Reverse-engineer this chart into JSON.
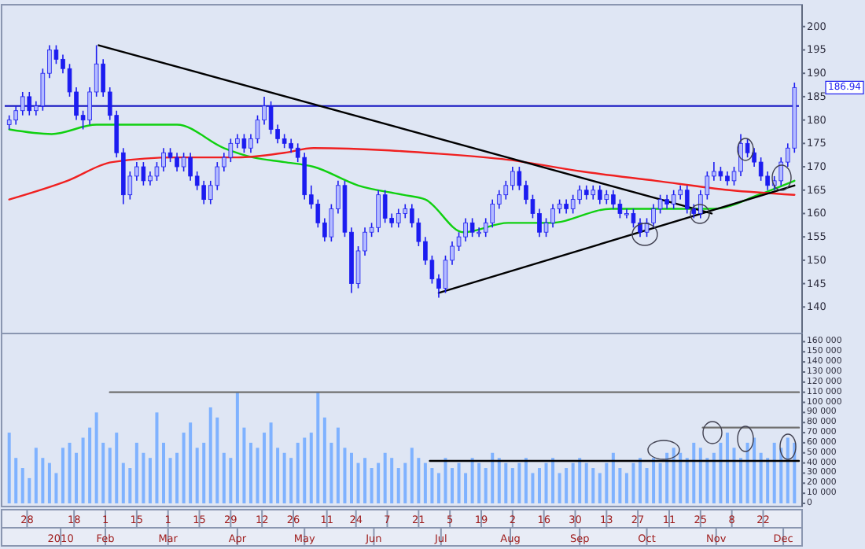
{
  "chart_data": [
    {
      "type": "candlestick",
      "color": "#1c1cf0",
      "xlim": [
        "2009-12-18",
        "2010-12-08"
      ],
      "ylim": [
        135,
        204
      ],
      "yticks": [
        140,
        145,
        150,
        155,
        160,
        165,
        170,
        175,
        180,
        185,
        190,
        195,
        200
      ],
      "tick_labels": "y",
      "x": [
        "2009-12-20",
        "2009-12-23",
        "2009-12-26",
        "2009-12-29",
        "2010-01-01",
        "2010-01-04",
        "2010-01-07",
        "2010-01-10",
        "2010-01-13",
        "2010-01-16",
        "2010-01-19",
        "2010-01-22",
        "2010-01-25",
        "2010-01-28",
        "2010-01-31",
        "2010-02-03",
        "2010-02-06",
        "2010-02-09",
        "2010-02-12",
        "2010-02-15",
        "2010-02-18",
        "2010-02-21",
        "2010-02-24",
        "2010-02-27",
        "2010-03-02",
        "2010-03-05",
        "2010-03-08",
        "2010-03-11",
        "2010-03-14",
        "2010-03-17",
        "2010-03-20",
        "2010-03-23",
        "2010-03-26",
        "2010-03-29",
        "2010-04-01",
        "2010-04-04",
        "2010-04-07",
        "2010-04-10",
        "2010-04-13",
        "2010-04-16",
        "2010-04-19",
        "2010-04-22",
        "2010-04-25",
        "2010-04-28",
        "2010-05-01",
        "2010-05-04",
        "2010-05-07",
        "2010-05-10",
        "2010-05-13",
        "2010-05-16",
        "2010-05-19",
        "2010-05-22",
        "2010-05-25",
        "2010-05-28",
        "2010-05-31",
        "2010-06-03",
        "2010-06-06",
        "2010-06-09",
        "2010-06-12",
        "2010-06-15",
        "2010-06-18",
        "2010-06-21",
        "2010-06-24",
        "2010-06-27",
        "2010-06-30",
        "2010-07-03",
        "2010-07-06",
        "2010-07-09",
        "2010-07-12",
        "2010-07-15",
        "2010-07-18",
        "2010-07-21",
        "2010-07-24",
        "2010-07-27",
        "2010-07-30",
        "2010-08-02",
        "2010-08-05",
        "2010-08-08",
        "2010-08-11",
        "2010-08-14",
        "2010-08-17",
        "2010-08-20",
        "2010-08-23",
        "2010-08-26",
        "2010-08-29",
        "2010-09-01",
        "2010-09-04",
        "2010-09-07",
        "2010-09-10",
        "2010-09-13",
        "2010-09-16",
        "2010-09-19",
        "2010-09-22",
        "2010-09-25",
        "2010-09-28",
        "2010-10-01",
        "2010-10-04",
        "2010-10-07",
        "2010-10-10",
        "2010-10-13",
        "2010-10-16",
        "2010-10-19",
        "2010-10-22",
        "2010-10-25",
        "2010-10-28",
        "2010-10-31",
        "2010-11-03",
        "2010-11-06",
        "2010-11-09",
        "2010-11-12",
        "2010-11-15",
        "2010-11-18",
        "2010-11-21",
        "2010-11-24",
        "2010-11-27",
        "2010-11-30",
        "2010-12-03",
        "2010-12-06"
      ],
      "ohlc": [
        [
          179,
          181,
          178,
          180
        ],
        [
          180,
          183,
          179,
          182
        ],
        [
          182,
          186,
          181,
          185
        ],
        [
          185,
          186,
          181,
          182
        ],
        [
          182,
          184,
          181,
          183
        ],
        [
          183,
          191,
          182,
          190
        ],
        [
          190,
          196,
          189,
          195
        ],
        [
          195,
          196,
          192,
          193
        ],
        [
          193,
          194,
          190,
          191
        ],
        [
          191,
          192,
          185,
          186
        ],
        [
          186,
          187,
          180,
          181
        ],
        [
          181,
          182,
          178,
          180
        ],
        [
          180,
          187,
          179,
          186
        ],
        [
          186,
          196,
          185,
          192
        ],
        [
          192,
          193,
          185,
          186
        ],
        [
          186,
          187,
          180,
          181
        ],
        [
          181,
          182,
          172,
          173
        ],
        [
          173,
          174,
          162,
          164
        ],
        [
          164,
          169,
          163,
          168
        ],
        [
          168,
          171,
          167,
          170
        ],
        [
          170,
          171,
          166,
          167
        ],
        [
          167,
          169,
          166,
          168
        ],
        [
          168,
          171,
          167,
          170
        ],
        [
          170,
          174,
          169,
          173
        ],
        [
          173,
          174,
          171,
          172
        ],
        [
          172,
          173,
          169,
          170
        ],
        [
          170,
          173,
          169,
          172
        ],
        [
          172,
          173,
          167,
          168
        ],
        [
          168,
          169,
          165,
          166
        ],
        [
          166,
          167,
          162,
          163
        ],
        [
          163,
          167,
          162,
          166
        ],
        [
          166,
          171,
          165,
          170
        ],
        [
          170,
          173,
          169,
          172
        ],
        [
          172,
          176,
          171,
          175
        ],
        [
          175,
          177,
          174,
          176
        ],
        [
          176,
          177,
          173,
          174
        ],
        [
          174,
          177,
          173,
          176
        ],
        [
          176,
          181,
          175,
          180
        ],
        [
          180,
          185,
          179,
          183
        ],
        [
          183,
          184,
          177,
          178
        ],
        [
          178,
          179,
          175,
          176
        ],
        [
          176,
          177,
          174,
          175
        ],
        [
          175,
          176,
          173,
          174
        ],
        [
          174,
          175,
          171,
          172
        ],
        [
          172,
          173,
          163,
          164
        ],
        [
          164,
          166,
          161,
          162
        ],
        [
          162,
          163,
          157,
          158
        ],
        [
          158,
          159,
          154,
          155
        ],
        [
          155,
          162,
          154,
          161
        ],
        [
          161,
          167,
          160,
          166
        ],
        [
          166,
          167,
          155,
          156
        ],
        [
          156,
          157,
          143,
          145
        ],
        [
          145,
          153,
          144,
          152
        ],
        [
          152,
          157,
          151,
          156
        ],
        [
          156,
          158,
          155,
          157
        ],
        [
          157,
          165,
          156,
          164
        ],
        [
          164,
          165,
          158,
          159
        ],
        [
          159,
          160,
          157,
          158
        ],
        [
          158,
          161,
          157,
          160
        ],
        [
          160,
          162,
          159,
          161
        ],
        [
          161,
          162,
          157,
          158
        ],
        [
          158,
          159,
          153,
          154
        ],
        [
          154,
          155,
          149,
          150
        ],
        [
          150,
          151,
          145,
          146
        ],
        [
          146,
          147,
          142,
          144
        ],
        [
          144,
          151,
          143,
          150
        ],
        [
          150,
          154,
          149,
          153
        ],
        [
          153,
          156,
          152,
          155
        ],
        [
          155,
          159,
          154,
          158
        ],
        [
          158,
          159,
          155,
          156
        ],
        [
          156,
          157,
          155,
          156
        ],
        [
          156,
          159,
          155,
          158
        ],
        [
          158,
          163,
          157,
          162
        ],
        [
          162,
          165,
          161,
          164
        ],
        [
          164,
          167,
          163,
          166
        ],
        [
          166,
          170,
          165,
          169
        ],
        [
          169,
          170,
          165,
          166
        ],
        [
          166,
          167,
          162,
          163
        ],
        [
          163,
          164,
          159,
          160
        ],
        [
          160,
          161,
          155,
          156
        ],
        [
          156,
          159,
          155,
          158
        ],
        [
          158,
          162,
          157,
          161
        ],
        [
          161,
          163,
          160,
          162
        ],
        [
          162,
          163,
          160,
          161
        ],
        [
          161,
          164,
          160,
          163
        ],
        [
          163,
          166,
          162,
          165
        ],
        [
          165,
          166,
          163,
          164
        ],
        [
          164,
          166,
          163,
          165
        ],
        [
          165,
          166,
          162,
          163
        ],
        [
          163,
          165,
          162,
          164
        ],
        [
          164,
          165,
          161,
          162
        ],
        [
          162,
          163,
          159,
          160
        ],
        [
          160,
          161,
          159,
          160
        ],
        [
          160,
          161,
          157,
          158
        ],
        [
          158,
          159,
          155,
          156
        ],
        [
          156,
          159,
          155,
          158
        ],
        [
          158,
          162,
          157,
          161
        ],
        [
          161,
          164,
          160,
          163
        ],
        [
          163,
          164,
          161,
          162
        ],
        [
          162,
          165,
          161,
          164
        ],
        [
          164,
          166,
          163,
          165
        ],
        [
          165,
          166,
          160,
          161
        ],
        [
          161,
          162,
          159,
          160
        ],
        [
          160,
          165,
          159,
          164
        ],
        [
          164,
          169,
          163,
          168
        ],
        [
          168,
          171,
          167,
          169
        ],
        [
          169,
          170,
          167,
          168
        ],
        [
          168,
          169,
          166,
          167
        ],
        [
          167,
          170,
          166,
          169
        ],
        [
          169,
          177,
          168,
          175
        ],
        [
          175,
          176,
          172,
          173
        ],
        [
          173,
          174,
          170,
          171
        ],
        [
          171,
          172,
          167,
          168
        ],
        [
          168,
          169,
          165,
          166
        ],
        [
          166,
          168,
          165,
          167
        ],
        [
          167,
          172,
          166,
          171
        ],
        [
          171,
          175,
          170,
          174
        ],
        [
          174,
          188,
          173,
          186.94
        ]
      ],
      "series": [
        {
          "type": "line",
          "color": "#10d010",
          "x": [
            "2009-12-20",
            "2010-01-08",
            "2010-01-28",
            "2010-03-05",
            "2010-03-26",
            "2010-04-08",
            "2010-04-22",
            "2010-05-05",
            "2010-05-25",
            "2010-06-14",
            "2010-06-24",
            "2010-07-11",
            "2010-07-31",
            "2010-08-19",
            "2010-09-15",
            "2010-10-11",
            "2010-10-31",
            "2010-11-20",
            "2010-12-06"
          ],
          "values": [
            178,
            177,
            179,
            179,
            174,
            172,
            171,
            170,
            166,
            164,
            163,
            156,
            158,
            158,
            161,
            161,
            161,
            164,
            167
          ]
        },
        {
          "type": "line",
          "color": "#f02020",
          "x": [
            "2009-12-20",
            "2010-01-15",
            "2010-02-04",
            "2010-03-05",
            "2010-04-01",
            "2010-04-22",
            "2010-05-05",
            "2010-06-08",
            "2010-06-24",
            "2010-07-31",
            "2010-09-02",
            "2010-10-05",
            "2010-11-07",
            "2010-12-06"
          ],
          "values": [
            163,
            167,
            171,
            172,
            172,
            173,
            174,
            173.5,
            173,
            171.5,
            169,
            167,
            165,
            164
          ]
        },
        {
          "type": "line",
          "color": "#000000",
          "x": [
            "2010-01-29",
            "2010-10-30"
          ],
          "values": [
            196,
            160
          ]
        },
        {
          "type": "line",
          "color": "#000000",
          "x": [
            "2010-06-30",
            "2010-12-06"
          ],
          "values": [
            143,
            166
          ]
        }
      ],
      "ref_lines": [
        {
          "axis": "y",
          "value": 183,
          "color": "#1010c0"
        }
      ],
      "annotations": [
        "186.94"
      ]
    },
    {
      "type": "bar",
      "xlim": [
        "2009-12-18",
        "2010-12-08"
      ],
      "ylim": [
        0,
        165000
      ],
      "yticks": [
        {
          "value": 0,
          "label": "0"
        },
        {
          "value": 10000,
          "label": "10 000"
        },
        {
          "value": 20000,
          "label": "20 000"
        },
        {
          "value": 30000,
          "label": "30 000"
        },
        {
          "value": 40000,
          "label": "40 000"
        },
        {
          "value": 50000,
          "label": "50 000"
        },
        {
          "value": 60000,
          "label": "60 000"
        },
        {
          "value": 70000,
          "label": "70 000"
        },
        {
          "value": 80000,
          "label": "80 000"
        },
        {
          "value": 90000,
          "label": "90 000"
        },
        {
          "value": 100000,
          "label": "100 000"
        },
        {
          "value": 110000,
          "label": "110 000"
        },
        {
          "value": 120000,
          "label": "120 000"
        },
        {
          "value": 130000,
          "label": "130 000"
        },
        {
          "value": 140000,
          "label": "140 000"
        },
        {
          "value": 150000,
          "label": "150 000"
        },
        {
          "value": 160000,
          "label": "160 000"
        }
      ],
      "xticks": [
        {
          "value": "2009-12-28",
          "label": "28"
        },
        {
          "value": "2010-01-18",
          "label": "18"
        },
        {
          "value": "2010-02-01",
          "label": "1"
        },
        {
          "value": "2010-02-15",
          "label": "15"
        },
        {
          "value": "2010-03-01",
          "label": "1"
        },
        {
          "value": "2010-03-15",
          "label": "15"
        },
        {
          "value": "2010-03-29",
          "label": "29"
        },
        {
          "value": "2010-04-12",
          "label": "12"
        },
        {
          "value": "2010-04-26",
          "label": "26"
        },
        {
          "value": "2010-05-11",
          "label": "11"
        },
        {
          "value": "2010-05-24",
          "label": "24"
        },
        {
          "value": "2010-06-07",
          "label": "7"
        },
        {
          "value": "2010-06-21",
          "label": "21"
        },
        {
          "value": "2010-07-05",
          "label": "5"
        },
        {
          "value": "2010-07-19",
          "label": "19"
        },
        {
          "value": "2010-08-02",
          "label": "2"
        },
        {
          "value": "2010-08-16",
          "label": "16"
        },
        {
          "value": "2010-08-30",
          "label": "30"
        },
        {
          "value": "2010-09-13",
          "label": "13"
        },
        {
          "value": "2010-09-27",
          "label": "27"
        },
        {
          "value": "2010-10-11",
          "label": "11"
        },
        {
          "value": "2010-10-25",
          "label": "25"
        },
        {
          "value": "2010-11-08",
          "label": "8"
        },
        {
          "value": "2010-11-22",
          "label": "22"
        }
      ],
      "x": [
        "2009-12-20",
        "2009-12-23",
        "2009-12-26",
        "2009-12-29",
        "2010-01-01",
        "2010-01-04",
        "2010-01-07",
        "2010-01-10",
        "2010-01-13",
        "2010-01-16",
        "2010-01-19",
        "2010-01-22",
        "2010-01-25",
        "2010-01-28",
        "2010-01-31",
        "2010-02-03",
        "2010-02-06",
        "2010-02-09",
        "2010-02-12",
        "2010-02-15",
        "2010-02-18",
        "2010-02-21",
        "2010-02-24",
        "2010-02-27",
        "2010-03-02",
        "2010-03-05",
        "2010-03-08",
        "2010-03-11",
        "2010-03-14",
        "2010-03-17",
        "2010-03-20",
        "2010-03-23",
        "2010-03-26",
        "2010-03-29",
        "2010-04-01",
        "2010-04-04",
        "2010-04-07",
        "2010-04-10",
        "2010-04-13",
        "2010-04-16",
        "2010-04-19",
        "2010-04-22",
        "2010-04-25",
        "2010-04-28",
        "2010-05-01",
        "2010-05-04",
        "2010-05-07",
        "2010-05-10",
        "2010-05-13",
        "2010-05-16",
        "2010-05-19",
        "2010-05-22",
        "2010-05-25",
        "2010-05-28",
        "2010-05-31",
        "2010-06-03",
        "2010-06-06",
        "2010-06-09",
        "2010-06-12",
        "2010-06-15",
        "2010-06-18",
        "2010-06-21",
        "2010-06-24",
        "2010-06-27",
        "2010-06-30",
        "2010-07-03",
        "2010-07-06",
        "2010-07-09",
        "2010-07-12",
        "2010-07-15",
        "2010-07-18",
        "2010-07-21",
        "2010-07-24",
        "2010-07-27",
        "2010-07-30",
        "2010-08-02",
        "2010-08-05",
        "2010-08-08",
        "2010-08-11",
        "2010-08-14",
        "2010-08-17",
        "2010-08-20",
        "2010-08-23",
        "2010-08-26",
        "2010-08-29",
        "2010-09-01",
        "2010-09-04",
        "2010-09-07",
        "2010-09-10",
        "2010-09-13",
        "2010-09-16",
        "2010-09-19",
        "2010-09-22",
        "2010-09-25",
        "2010-09-28",
        "2010-10-01",
        "2010-10-04",
        "2010-10-07",
        "2010-10-10",
        "2010-10-13",
        "2010-10-16",
        "2010-10-19",
        "2010-10-22",
        "2010-10-25",
        "2010-10-28",
        "2010-10-31",
        "2010-11-03",
        "2010-11-06",
        "2010-11-09",
        "2010-11-12",
        "2010-11-15",
        "2010-11-18",
        "2010-11-21",
        "2010-11-24",
        "2010-11-27",
        "2010-11-30",
        "2010-12-03",
        "2010-12-06"
      ],
      "series": [
        {
          "type": "bar",
          "color": "#7fb2ff",
          "values": [
            70000,
            45000,
            35000,
            25000,
            55000,
            45000,
            40000,
            30000,
            55000,
            60000,
            50000,
            65000,
            75000,
            90000,
            60000,
            55000,
            70000,
            40000,
            35000,
            60000,
            50000,
            45000,
            90000,
            60000,
            45000,
            50000,
            70000,
            80000,
            55000,
            60000,
            95000,
            85000,
            50000,
            45000,
            110000,
            75000,
            60000,
            55000,
            70000,
            80000,
            55000,
            50000,
            45000,
            60000,
            65000,
            70000,
            110000,
            85000,
            60000,
            75000,
            55000,
            50000,
            40000,
            45000,
            35000,
            40000,
            50000,
            45000,
            35000,
            40000,
            55000,
            45000,
            40000,
            35000,
            30000,
            45000,
            35000,
            40000,
            30000,
            45000,
            40000,
            35000,
            50000,
            45000,
            40000,
            35000,
            40000,
            45000,
            30000,
            35000,
            40000,
            45000,
            30000,
            35000,
            40000,
            45000,
            40000,
            35000,
            30000,
            40000,
            50000,
            35000,
            30000,
            40000,
            45000,
            35000,
            45000,
            40000,
            50000,
            55000,
            50000,
            45000,
            60000,
            55000,
            45000,
            50000,
            60000,
            70000,
            55000,
            45000,
            60000,
            65000,
            50000,
            45000,
            60000,
            55000,
            65000,
            60000
          ]
        },
        {
          "type": "line",
          "color": "#707070",
          "x": [
            "2010-02-03",
            "2010-12-08"
          ],
          "values": [
            110000,
            110000
          ]
        },
        {
          "type": "line",
          "color": "#000000",
          "x": [
            "2010-06-26",
            "2010-12-08"
          ],
          "values": [
            42000,
            42000
          ]
        },
        {
          "type": "line",
          "color": "#707070",
          "x": [
            "2010-10-26",
            "2010-12-08"
          ],
          "values": [
            75000,
            75000
          ]
        }
      ],
      "x2lim": [
        "2009-12-18",
        "2010-12-08"
      ],
      "x2ticks": [
        {
          "value": "2010-01-12",
          "label": "2010"
        },
        {
          "value": "2010-02-01",
          "label": "Feb"
        },
        {
          "value": "2010-03-01",
          "label": "Mar"
        },
        {
          "value": "2010-04-01",
          "label": "Apr"
        },
        {
          "value": "2010-05-01",
          "label": "May"
        },
        {
          "value": "2010-06-01",
          "label": "Jun"
        },
        {
          "value": "2010-07-01",
          "label": "Jul"
        },
        {
          "value": "2010-08-01",
          "label": "Aug"
        },
        {
          "value": "2010-09-01",
          "label": "Sep"
        },
        {
          "value": "2010-10-01",
          "label": "Oct"
        },
        {
          "value": "2010-11-01",
          "label": "Nov"
        },
        {
          "value": "2010-12-01",
          "label": "Dec"
        }
      ]
    }
  ]
}
